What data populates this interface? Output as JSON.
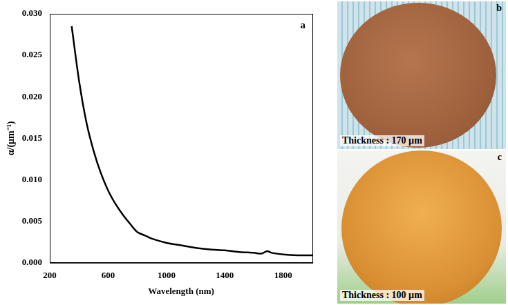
{
  "chart_data": {
    "type": "line",
    "panel": "a",
    "x_label": "Wavelength (nm)",
    "y_label": "α/(μm⁻¹)",
    "x": [
      350,
      400,
      450,
      500,
      550,
      600,
      650,
      700,
      750,
      800,
      850,
      900,
      1000,
      1100,
      1200,
      1300,
      1400,
      1500,
      1600,
      1650,
      1690,
      1720,
      1800,
      1900,
      2000
    ],
    "values": [
      0.0285,
      0.022,
      0.017,
      0.0135,
      0.0108,
      0.0087,
      0.0071,
      0.0058,
      0.0047,
      0.0037,
      0.0033,
      0.0029,
      0.0024,
      0.0021,
      0.0018,
      0.0016,
      0.0015,
      0.0013,
      0.0012,
      0.0011,
      0.0014,
      0.0012,
      0.001,
      0.0009,
      0.0009
    ],
    "color": "#000000",
    "xlim": [
      200,
      2000
    ],
    "xticks": [
      200,
      600,
      1000,
      1400,
      1800
    ],
    "ylim": [
      0,
      0.03
    ],
    "yticks": [
      {
        "value": 0,
        "label": "0.000"
      },
      {
        "value": 0.005,
        "label": "0.005"
      },
      {
        "value": 0.01,
        "label": "0.010"
      },
      {
        "value": 0.015,
        "label": "0.015"
      },
      {
        "value": 0.02,
        "label": "0.020"
      },
      {
        "value": 0.025,
        "label": "0.025"
      },
      {
        "value": 0.03,
        "label": "0.030"
      }
    ],
    "grid": false
  },
  "images": [
    {
      "letter": "b",
      "caption": "Thickness : 170 µm"
    },
    {
      "letter": "c",
      "caption": "Thickness : 100 µm"
    }
  ]
}
